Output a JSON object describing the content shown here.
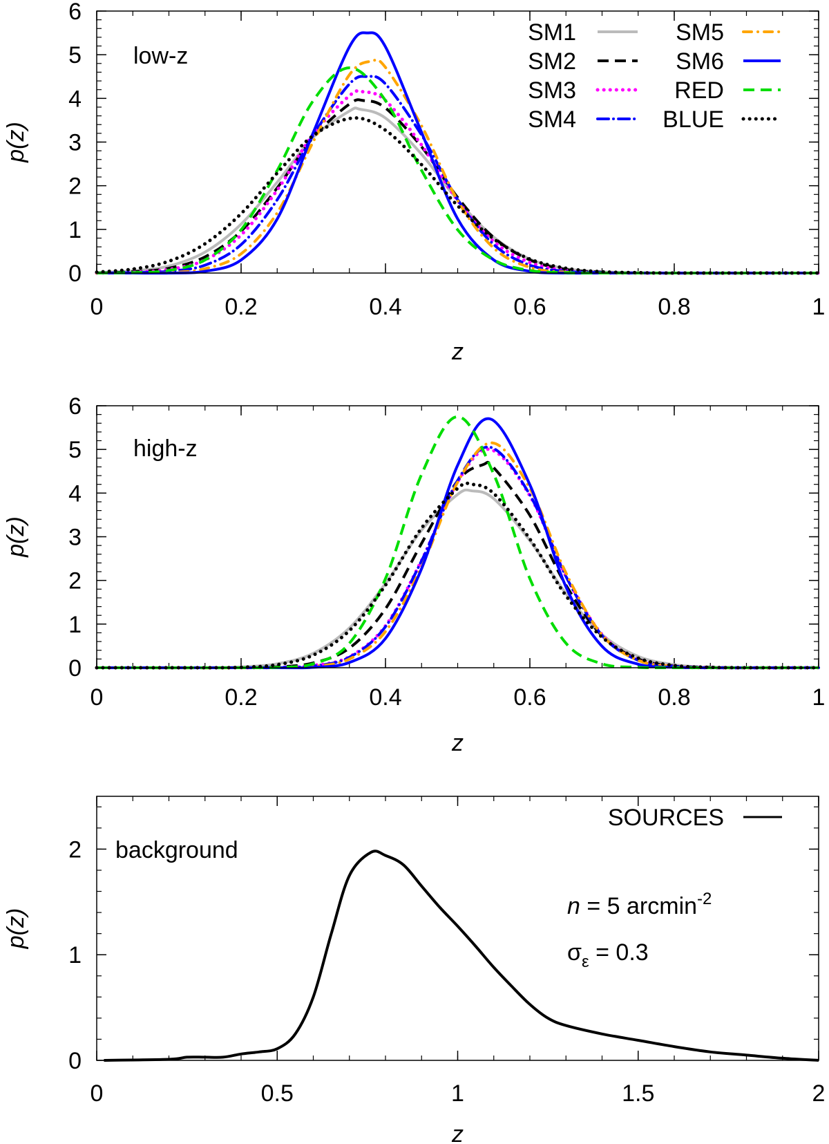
{
  "chart_data": [
    {
      "type": "line",
      "panel_label": "low-z",
      "xlabel": "z",
      "ylabel": "p(z)",
      "xlim": [
        0,
        1
      ],
      "ylim": [
        0,
        6
      ],
      "xticks": [
        "0",
        "0.2",
        "0.4",
        "0.6",
        "0.8",
        "1"
      ],
      "xtick_values": [
        0,
        0.2,
        0.4,
        0.6,
        0.8,
        1
      ],
      "yticks": [
        "0",
        "1",
        "2",
        "3",
        "4",
        "5",
        "6"
      ],
      "ytick_values": [
        0,
        1,
        2,
        3,
        4,
        5,
        6
      ],
      "legend_placement": "top-right",
      "series": [
        {
          "name": "SM1",
          "style": "solid",
          "color": "#bbbbbb",
          "x": [
            0,
            0.05,
            0.1,
            0.15,
            0.2,
            0.25,
            0.3,
            0.35,
            0.365,
            0.4,
            0.45,
            0.5,
            0.55,
            0.6,
            0.65,
            0.7,
            0.75,
            0.8,
            1
          ],
          "y": [
            0.01,
            0.05,
            0.16,
            0.48,
            1.12,
            2.08,
            3.11,
            3.71,
            3.75,
            3.55,
            2.72,
            1.67,
            0.82,
            0.32,
            0.1,
            0.03,
            0.01,
            0,
            0
          ]
        },
        {
          "name": "SM2",
          "style": "dashed",
          "color": "#000000",
          "x": [
            0,
            0.05,
            0.1,
            0.15,
            0.2,
            0.25,
            0.3,
            0.35,
            0.37,
            0.4,
            0.45,
            0.5,
            0.55,
            0.6,
            0.65,
            0.7,
            0.75,
            1
          ],
          "y": [
            0,
            0.03,
            0.11,
            0.37,
            0.96,
            1.95,
            3.11,
            3.87,
            3.95,
            3.78,
            2.89,
            1.73,
            0.81,
            0.3,
            0.08,
            0.02,
            0,
            0
          ]
        },
        {
          "name": "SM3",
          "style": "dotted",
          "color": "#ff00ff",
          "x": [
            0,
            0.05,
            0.1,
            0.15,
            0.2,
            0.25,
            0.3,
            0.35,
            0.37,
            0.4,
            0.45,
            0.5,
            0.55,
            0.6,
            0.65,
            0.7,
            0.75,
            1
          ],
          "y": [
            0,
            0.02,
            0.08,
            0.3,
            0.87,
            1.9,
            3.18,
            4.06,
            4.15,
            3.95,
            2.93,
            1.66,
            0.72,
            0.24,
            0.06,
            0.01,
            0,
            0
          ]
        },
        {
          "name": "SM4",
          "style": "dashdot",
          "color": "#0000ff",
          "x": [
            0,
            0.05,
            0.1,
            0.15,
            0.2,
            0.25,
            0.3,
            0.35,
            0.375,
            0.4,
            0.45,
            0.5,
            0.55,
            0.6,
            0.65,
            0.7,
            0.75,
            1
          ],
          "y": [
            0,
            0.01,
            0.04,
            0.18,
            0.65,
            1.68,
            3.16,
            4.33,
            4.5,
            4.33,
            3.16,
            1.68,
            0.65,
            0.18,
            0.04,
            0.01,
            0,
            0
          ]
        },
        {
          "name": "SM5",
          "style": "dashdot2",
          "color": "#ffa500",
          "x": [
            0,
            0.05,
            0.1,
            0.15,
            0.2,
            0.25,
            0.3,
            0.35,
            0.38,
            0.4,
            0.45,
            0.5,
            0.55,
            0.6,
            0.65,
            0.7,
            1
          ],
          "y": [
            0,
            0,
            0.01,
            0.1,
            0.44,
            1.38,
            3.01,
            4.54,
            4.85,
            4.71,
            3.37,
            1.66,
            0.57,
            0.13,
            0.02,
            0,
            0
          ]
        },
        {
          "name": "SM6",
          "style": "solid",
          "color": "#0000ff",
          "x": [
            0,
            0.05,
            0.1,
            0.15,
            0.2,
            0.25,
            0.3,
            0.35,
            0.375,
            0.4,
            0.45,
            0.5,
            0.55,
            0.6,
            0.65,
            0.7,
            1
          ],
          "y": [
            0,
            0,
            0,
            0.04,
            0.3,
            1.24,
            3.22,
            5.18,
            5.5,
            5.18,
            3.22,
            1.24,
            0.3,
            0.04,
            0,
            0,
            0
          ]
        },
        {
          "name": "RED",
          "style": "dashed",
          "color": "#00dd00",
          "x": [
            0,
            0.05,
            0.1,
            0.15,
            0.2,
            0.25,
            0.3,
            0.35,
            0.4,
            0.45,
            0.5,
            0.55,
            0.6,
            0.65,
            0.7,
            1
          ],
          "y": [
            0,
            0.01,
            0.06,
            0.3,
            0.99,
            2.35,
            3.95,
            4.7,
            3.95,
            2.35,
            0.99,
            0.3,
            0.06,
            0.01,
            0,
            0
          ]
        },
        {
          "name": "BLUE",
          "style": "dotted",
          "color": "#000000",
          "x": [
            0,
            0.05,
            0.1,
            0.15,
            0.2,
            0.25,
            0.3,
            0.355,
            0.4,
            0.45,
            0.5,
            0.55,
            0.6,
            0.65,
            0.7,
            0.75,
            0.8,
            1
          ],
          "y": [
            0.02,
            0.09,
            0.27,
            0.67,
            1.36,
            2.29,
            3.15,
            3.55,
            3.27,
            2.48,
            1.54,
            0.78,
            0.32,
            0.11,
            0.03,
            0.01,
            0,
            0
          ]
        }
      ]
    },
    {
      "type": "line",
      "panel_label": "high-z",
      "xlabel": "z",
      "ylabel": "p(z)",
      "xlim": [
        0,
        1
      ],
      "ylim": [
        0,
        6
      ],
      "xticks": [
        "0",
        "0.2",
        "0.4",
        "0.6",
        "0.8",
        "1"
      ],
      "xtick_values": [
        0,
        0.2,
        0.4,
        0.6,
        0.8,
        1
      ],
      "yticks": [
        "0",
        "1",
        "2",
        "3",
        "4",
        "5",
        "6"
      ],
      "ytick_values": [
        0,
        1,
        2,
        3,
        4,
        5,
        6
      ],
      "series": [
        {
          "name": "SM1",
          "style": "solid",
          "color": "#bbbbbb",
          "x": [
            0,
            0.15,
            0.2,
            0.25,
            0.3,
            0.35,
            0.4,
            0.45,
            0.5,
            0.52,
            0.55,
            0.6,
            0.65,
            0.7,
            0.75,
            0.8,
            0.85,
            0.9,
            1
          ],
          "y": [
            0,
            0,
            0.02,
            0.09,
            0.33,
            0.91,
            1.93,
            3.15,
            3.97,
            4.05,
            3.87,
            2.91,
            1.7,
            0.76,
            0.26,
            0.07,
            0.01,
            0,
            0
          ]
        },
        {
          "name": "SM2",
          "style": "dashed",
          "color": "#000000",
          "x": [
            0,
            0.2,
            0.25,
            0.3,
            0.35,
            0.4,
            0.45,
            0.5,
            0.535,
            0.55,
            0.6,
            0.65,
            0.7,
            0.75,
            0.8,
            0.85,
            0.9,
            1
          ],
          "y": [
            0,
            0,
            0.02,
            0.11,
            0.45,
            1.35,
            2.85,
            4.28,
            4.65,
            4.58,
            3.49,
            1.89,
            0.73,
            0.2,
            0.04,
            0.01,
            0,
            0
          ]
        },
        {
          "name": "SM3",
          "style": "dotted",
          "color": "#ff00ff",
          "x": [
            0,
            0.2,
            0.25,
            0.3,
            0.35,
            0.4,
            0.45,
            0.5,
            0.545,
            0.6,
            0.65,
            0.7,
            0.75,
            0.8,
            0.85,
            1
          ],
          "y": [
            0,
            0,
            0.01,
            0.05,
            0.25,
            0.96,
            2.46,
            4.26,
            5.0,
            3.94,
            2.1,
            0.76,
            0.18,
            0.03,
            0,
            0
          ]
        },
        {
          "name": "SM4",
          "style": "dashdot",
          "color": "#0000ff",
          "x": [
            0,
            0.2,
            0.25,
            0.3,
            0.35,
            0.4,
            0.45,
            0.5,
            0.545,
            0.6,
            0.65,
            0.7,
            0.75,
            0.8,
            0.85,
            1
          ],
          "y": [
            0,
            0,
            0.01,
            0.04,
            0.24,
            0.94,
            2.45,
            4.29,
            5.05,
            3.96,
            2.09,
            0.74,
            0.17,
            0.03,
            0,
            0
          ]
        },
        {
          "name": "SM5",
          "style": "dashdot2",
          "color": "#ffa500",
          "x": [
            0,
            0.25,
            0.3,
            0.35,
            0.4,
            0.45,
            0.5,
            0.548,
            0.6,
            0.65,
            0.7,
            0.75,
            0.8,
            0.85,
            1
          ],
          "y": [
            0,
            0,
            0.03,
            0.2,
            0.83,
            2.31,
            4.25,
            5.15,
            4.11,
            2.17,
            0.75,
            0.17,
            0.03,
            0,
            0
          ]
        },
        {
          "name": "SM6",
          "style": "solid",
          "color": "#0000ff",
          "x": [
            0,
            0.25,
            0.3,
            0.35,
            0.4,
            0.45,
            0.5,
            0.545,
            0.6,
            0.65,
            0.7,
            0.75,
            0.8,
            0.85,
            1
          ],
          "y": [
            0,
            0,
            0.01,
            0.12,
            0.67,
            2.27,
            4.64,
            5.7,
            4.19,
            1.85,
            0.49,
            0.08,
            0.01,
            0,
            0
          ]
        },
        {
          "name": "RED",
          "style": "dashed",
          "color": "#00dd00",
          "x": [
            0,
            0.2,
            0.25,
            0.3,
            0.35,
            0.4,
            0.45,
            0.5,
            0.55,
            0.6,
            0.65,
            0.7,
            0.75,
            0.8,
            1
          ],
          "y": [
            0,
            0,
            0.01,
            0.09,
            0.56,
            2.04,
            4.43,
            5.75,
            4.43,
            2.04,
            0.56,
            0.09,
            0.01,
            0,
            0
          ]
        },
        {
          "name": "BLUE",
          "style": "dotted",
          "color": "#000000",
          "x": [
            0,
            0.15,
            0.2,
            0.25,
            0.3,
            0.35,
            0.4,
            0.45,
            0.5,
            0.52,
            0.55,
            0.6,
            0.65,
            0.7,
            0.75,
            0.8,
            0.85,
            0.9,
            1
          ],
          "y": [
            0,
            0,
            0.01,
            0.07,
            0.29,
            0.85,
            1.89,
            3.2,
            4.11,
            4.2,
            3.99,
            2.95,
            1.65,
            0.7,
            0.22,
            0.05,
            0.01,
            0,
            0
          ]
        }
      ]
    },
    {
      "type": "line",
      "panel_label": "background",
      "xlabel": "z",
      "ylabel": "p(z)",
      "xlim": [
        0,
        2
      ],
      "ylim": [
        0,
        2.5
      ],
      "xticks": [
        "0",
        "0.5",
        "1",
        "1.5",
        "2"
      ],
      "xtick_values": [
        0,
        0.5,
        1,
        1.5,
        2
      ],
      "yticks": [
        "0",
        "1",
        "2"
      ],
      "ytick_values": [
        0,
        1,
        2
      ],
      "legend_placement": "top-right",
      "annotations": {
        "density_prefix": "n",
        "density_text": " = 5 arcmin",
        "density_exp": "-2",
        "sigma_symbol": "σ",
        "sigma_sub": "ε",
        "sigma_text": " = 0.3"
      },
      "series": [
        {
          "name": "SOURCES",
          "style": "solid",
          "color": "#000000",
          "x": [
            0.02,
            0.2,
            0.25,
            0.3,
            0.35,
            0.4,
            0.45,
            0.5,
            0.55,
            0.6,
            0.65,
            0.7,
            0.76,
            0.8,
            0.85,
            0.9,
            0.95,
            1.0,
            1.05,
            1.1,
            1.15,
            1.2,
            1.25,
            1.3,
            1.4,
            1.5,
            1.6,
            1.7,
            1.8,
            1.9,
            2.0
          ],
          "y": [
            0,
            0.01,
            0.03,
            0.03,
            0.03,
            0.06,
            0.08,
            0.11,
            0.25,
            0.6,
            1.2,
            1.75,
            1.97,
            1.94,
            1.85,
            1.65,
            1.45,
            1.27,
            1.08,
            0.88,
            0.7,
            0.53,
            0.4,
            0.33,
            0.25,
            0.19,
            0.13,
            0.08,
            0.05,
            0.02,
            0
          ]
        }
      ]
    }
  ]
}
